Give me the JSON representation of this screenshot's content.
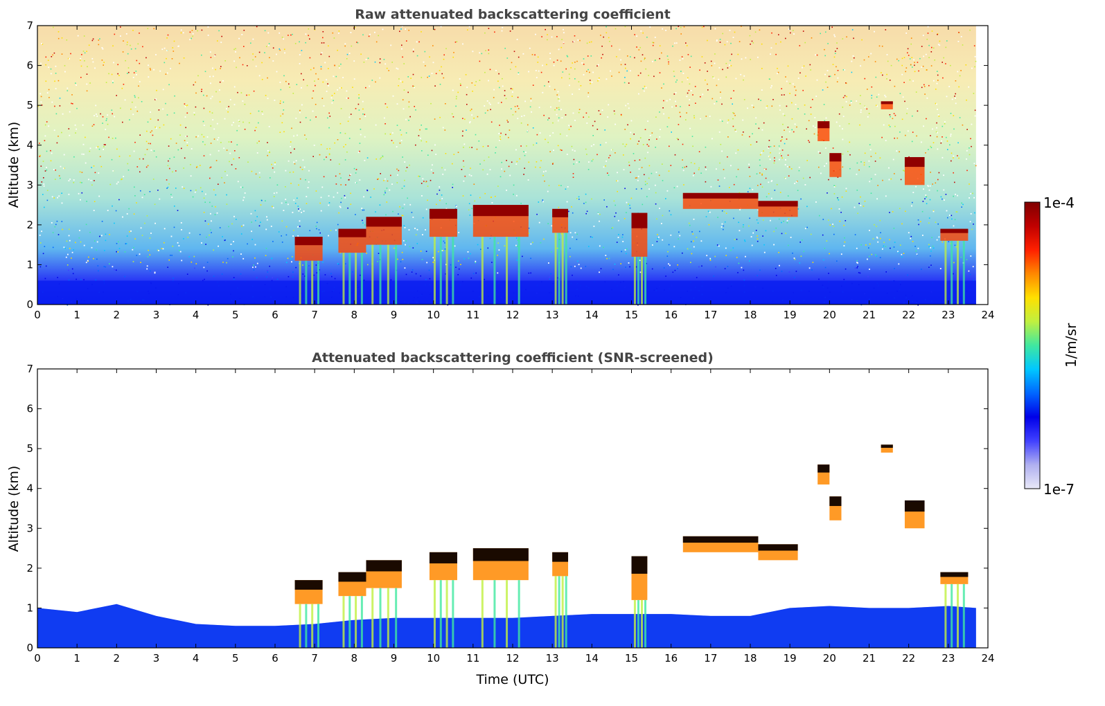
{
  "chart_data": [
    {
      "type": "heatmap",
      "title": "Raw attenuated backscattering coefficient",
      "xlabel": "",
      "ylabel": "Altitude (km)",
      "xlim": [
        0,
        24
      ],
      "ylim": [
        0,
        7
      ],
      "x_ticks": [
        "0",
        "1",
        "2",
        "3",
        "4",
        "5",
        "6",
        "7",
        "8",
        "9",
        "10",
        "11",
        "12",
        "13",
        "14",
        "15",
        "16",
        "17",
        "18",
        "19",
        "20",
        "21",
        "22",
        "23",
        "24"
      ],
      "y_ticks": [
        "0",
        "1",
        "2",
        "3",
        "4",
        "5",
        "6",
        "7"
      ],
      "data_end_time": 23.7,
      "features": [
        {
          "kind": "cloud",
          "t_start": 6.5,
          "t_end": 7.2,
          "alt_bottom": 1.1,
          "alt_top": 1.7
        },
        {
          "kind": "cloud",
          "t_start": 7.6,
          "t_end": 8.3,
          "alt_bottom": 1.3,
          "alt_top": 1.9
        },
        {
          "kind": "cloud",
          "t_start": 8.3,
          "t_end": 9.2,
          "alt_bottom": 1.5,
          "alt_top": 2.2
        },
        {
          "kind": "cloud",
          "t_start": 9.9,
          "t_end": 10.6,
          "alt_bottom": 1.7,
          "alt_top": 2.4
        },
        {
          "kind": "cloud",
          "t_start": 11.0,
          "t_end": 12.4,
          "alt_bottom": 1.7,
          "alt_top": 2.5
        },
        {
          "kind": "cloud",
          "t_start": 13.0,
          "t_end": 13.4,
          "alt_bottom": 1.8,
          "alt_top": 2.4
        },
        {
          "kind": "cloud",
          "t_start": 15.0,
          "t_end": 15.4,
          "alt_bottom": 1.2,
          "alt_top": 2.3
        },
        {
          "kind": "cloud",
          "t_start": 16.3,
          "t_end": 18.2,
          "alt_bottom": 2.4,
          "alt_top": 2.8
        },
        {
          "kind": "cloud",
          "t_start": 18.2,
          "t_end": 19.2,
          "alt_bottom": 2.2,
          "alt_top": 2.6
        },
        {
          "kind": "cloud",
          "t_start": 19.7,
          "t_end": 20.0,
          "alt_bottom": 4.1,
          "alt_top": 4.6
        },
        {
          "kind": "cloud",
          "t_start": 20.0,
          "t_end": 20.3,
          "alt_bottom": 3.2,
          "alt_top": 3.8
        },
        {
          "kind": "cloud",
          "t_start": 21.3,
          "t_end": 21.6,
          "alt_bottom": 4.9,
          "alt_top": 5.1
        },
        {
          "kind": "cloud",
          "t_start": 21.9,
          "t_end": 22.4,
          "alt_bottom": 3.0,
          "alt_top": 3.7
        },
        {
          "kind": "cloud",
          "t_start": 22.8,
          "t_end": 23.5,
          "alt_bottom": 1.6,
          "alt_top": 1.9
        }
      ]
    },
    {
      "type": "heatmap",
      "title": "Attenuated backscattering coefficient (SNR-screened)",
      "xlabel": "Time (UTC)",
      "ylabel": "Altitude (km)",
      "xlim": [
        0,
        24
      ],
      "ylim": [
        0,
        7
      ],
      "x_ticks": [
        "0",
        "1",
        "2",
        "3",
        "4",
        "5",
        "6",
        "7",
        "8",
        "9",
        "10",
        "11",
        "12",
        "13",
        "14",
        "15",
        "16",
        "17",
        "18",
        "19",
        "20",
        "21",
        "22",
        "23",
        "24"
      ],
      "y_ticks": [
        "0",
        "1",
        "2",
        "3",
        "4",
        "5",
        "6",
        "7"
      ],
      "data_end_time": 23.7,
      "boundary_layer_top_km": [
        [
          0,
          1.0
        ],
        [
          1,
          0.9
        ],
        [
          2,
          1.1
        ],
        [
          3,
          0.8
        ],
        [
          4,
          0.6
        ],
        [
          5,
          0.55
        ],
        [
          6,
          0.55
        ],
        [
          7,
          0.6
        ],
        [
          8,
          0.7
        ],
        [
          9,
          0.75
        ],
        [
          10,
          0.75
        ],
        [
          11,
          0.75
        ],
        [
          12,
          0.75
        ],
        [
          13,
          0.8
        ],
        [
          14,
          0.85
        ],
        [
          15,
          0.85
        ],
        [
          16,
          0.85
        ],
        [
          17,
          0.8
        ],
        [
          18,
          0.8
        ],
        [
          19,
          1.0
        ],
        [
          20,
          1.05
        ],
        [
          21,
          1.0
        ],
        [
          22,
          1.0
        ],
        [
          23,
          1.05
        ],
        [
          23.7,
          1.0
        ]
      ]
    }
  ],
  "colorbar": {
    "label": "1/m/sr",
    "max_label": "1e-4",
    "min_label": "1e-7",
    "colors": [
      "#e8e8f8",
      "#b0b0f0",
      "#4040ff",
      "#0000e8",
      "#0066ff",
      "#00c8ff",
      "#40e8a0",
      "#c0f040",
      "#ffe000",
      "#ff8800",
      "#ff2000",
      "#c00000",
      "#800000"
    ]
  }
}
